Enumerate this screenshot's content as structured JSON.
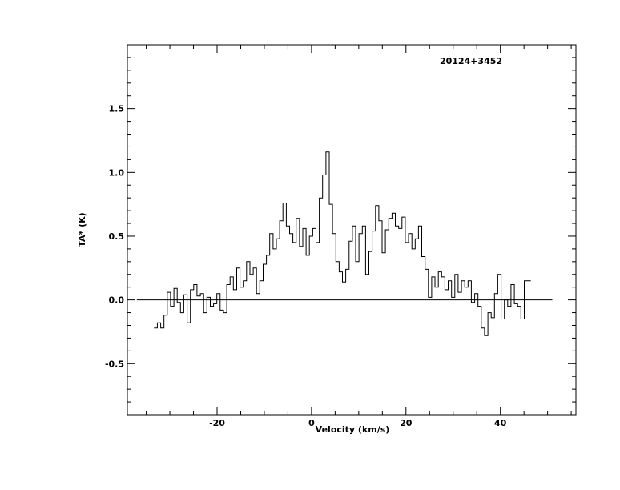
{
  "chart_data": {
    "type": "line",
    "style": "step",
    "annotation": "20124+3452",
    "xlabel": "Velocity (km/s)",
    "ylabel": "TA* (K)",
    "xlim": [
      -39,
      56
    ],
    "ylim": [
      -0.9,
      2.0
    ],
    "xticks": [
      -20,
      0,
      20,
      40
    ],
    "xtick_labels": [
      "-20",
      "0",
      "20",
      "40"
    ],
    "yticks": [
      -0.5,
      0.0,
      0.5,
      1.0,
      1.5
    ],
    "ytick_labels": [
      "-0.5",
      "0.0",
      "0.5",
      "1.0",
      "1.5"
    ],
    "baseline": {
      "y": 0.0,
      "x_start": -37,
      "x_end": 51
    },
    "grid": false,
    "series": [
      {
        "x": [
          -33.0,
          -32.3,
          -31.6,
          -30.9,
          -30.2,
          -29.5,
          -28.8,
          -28.1,
          -27.4,
          -26.7,
          -26.0,
          -25.3,
          -24.6,
          -23.9,
          -23.2,
          -22.5,
          -21.8,
          -21.1,
          -20.4,
          -19.7,
          -19.0,
          -18.3,
          -17.6,
          -16.9,
          -16.2,
          -15.5,
          -14.8,
          -14.1,
          -13.4,
          -12.7,
          -12.0,
          -11.3,
          -10.6,
          -9.9,
          -9.2,
          -8.5,
          -7.8,
          -7.1,
          -6.4,
          -5.7,
          -5.0,
          -4.3,
          -3.6,
          -2.9,
          -2.2,
          -1.5,
          -0.8,
          -0.1,
          0.6,
          1.3,
          2.0,
          2.7,
          3.4,
          4.1,
          4.8,
          5.5,
          6.2,
          6.9,
          7.6,
          8.3,
          9.0,
          9.7,
          10.4,
          11.1,
          11.8,
          12.5,
          13.2,
          13.9,
          14.6,
          15.3,
          16.0,
          16.7,
          17.4,
          18.1,
          18.8,
          19.5,
          20.2,
          20.9,
          21.6,
          22.3,
          23.0,
          23.7,
          24.4,
          25.1,
          25.8,
          26.5,
          27.2,
          27.9,
          28.6,
          29.3,
          30.0,
          30.7,
          31.4,
          32.1,
          32.8,
          33.5,
          34.2,
          34.9,
          35.6,
          36.3,
          37.0,
          37.7,
          38.4,
          39.1,
          39.8,
          40.5,
          41.2,
          41.9,
          42.6,
          43.3,
          44.0,
          44.7,
          45.4,
          46.1
        ],
        "values": [
          -0.22,
          -0.18,
          -0.22,
          -0.12,
          0.06,
          -0.05,
          0.09,
          -0.02,
          -0.1,
          0.04,
          -0.18,
          0.08,
          0.12,
          0.03,
          0.05,
          -0.1,
          0.02,
          -0.05,
          -0.03,
          0.05,
          -0.08,
          -0.1,
          0.12,
          0.18,
          0.08,
          0.25,
          0.1,
          0.15,
          0.3,
          0.2,
          0.25,
          0.05,
          0.15,
          0.28,
          0.35,
          0.52,
          0.4,
          0.48,
          0.62,
          0.76,
          0.58,
          0.52,
          0.45,
          0.64,
          0.42,
          0.56,
          0.35,
          0.5,
          0.56,
          0.45,
          0.8,
          0.98,
          1.16,
          0.75,
          0.52,
          0.3,
          0.22,
          0.14,
          0.24,
          0.46,
          0.58,
          0.3,
          0.52,
          0.58,
          0.2,
          0.38,
          0.54,
          0.74,
          0.62,
          0.37,
          0.55,
          0.64,
          0.68,
          0.58,
          0.56,
          0.65,
          0.45,
          0.52,
          0.4,
          0.48,
          0.58,
          0.34,
          0.24,
          0.02,
          0.18,
          0.1,
          0.22,
          0.18,
          0.08,
          0.15,
          0.02,
          0.2,
          0.06,
          0.15,
          0.1,
          0.15,
          -0.02,
          0.05,
          -0.05,
          -0.22,
          -0.28,
          -0.1,
          -0.14,
          0.05,
          0.2,
          -0.15,
          0.0,
          -0.05,
          0.12,
          -0.03,
          -0.05,
          -0.15,
          0.15,
          0.15
        ]
      }
    ]
  }
}
